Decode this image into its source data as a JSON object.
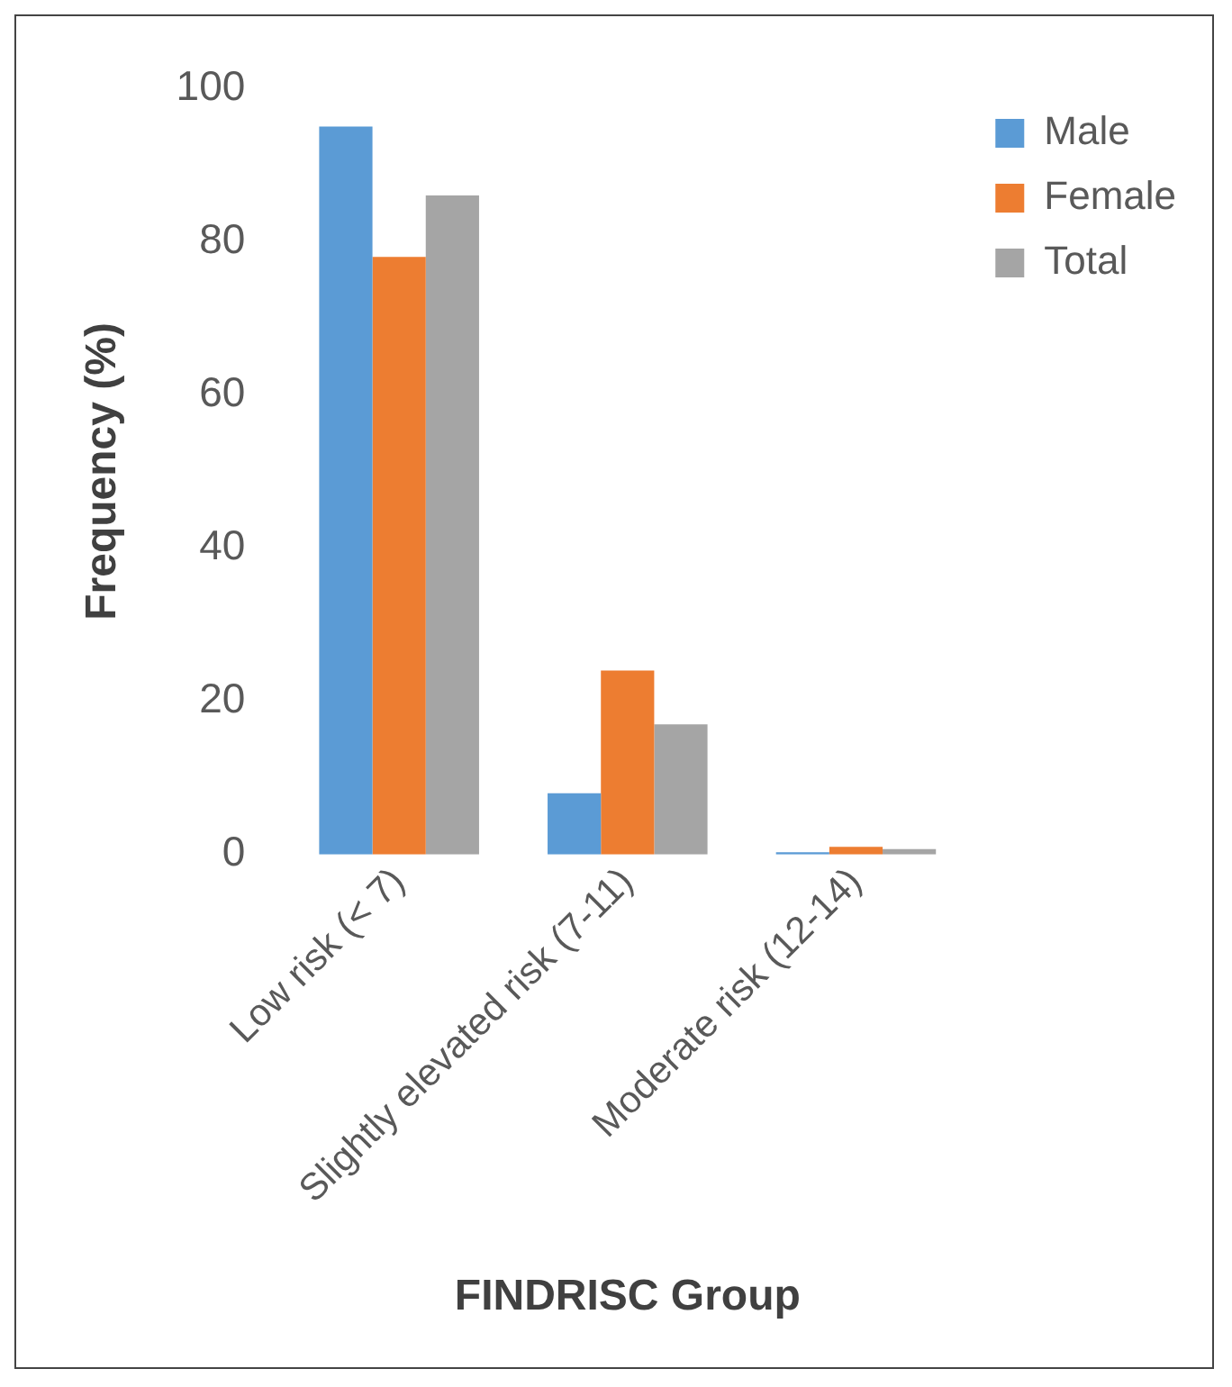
{
  "chart_data": {
    "type": "bar",
    "xlabel": "FINDRISC Group",
    "ylabel": "Frequency (%)",
    "categories": [
      "Low risk (< 7)",
      "Slightly elevated risk (7-11)",
      "Moderate risk (12-14)"
    ],
    "series": [
      {
        "name": "Male",
        "color": "#5b9bd5",
        "values": [
          95,
          8,
          0.3
        ]
      },
      {
        "name": "Female",
        "color": "#ed7d31",
        "values": [
          78,
          24,
          1
        ]
      },
      {
        "name": "Total",
        "color": "#a5a5a5",
        "values": [
          86,
          17,
          0.7
        ]
      }
    ],
    "ylim": [
      0,
      100
    ],
    "yticks": [
      0,
      20,
      40,
      60,
      80,
      100
    ],
    "grid": false,
    "legend": "top right"
  }
}
